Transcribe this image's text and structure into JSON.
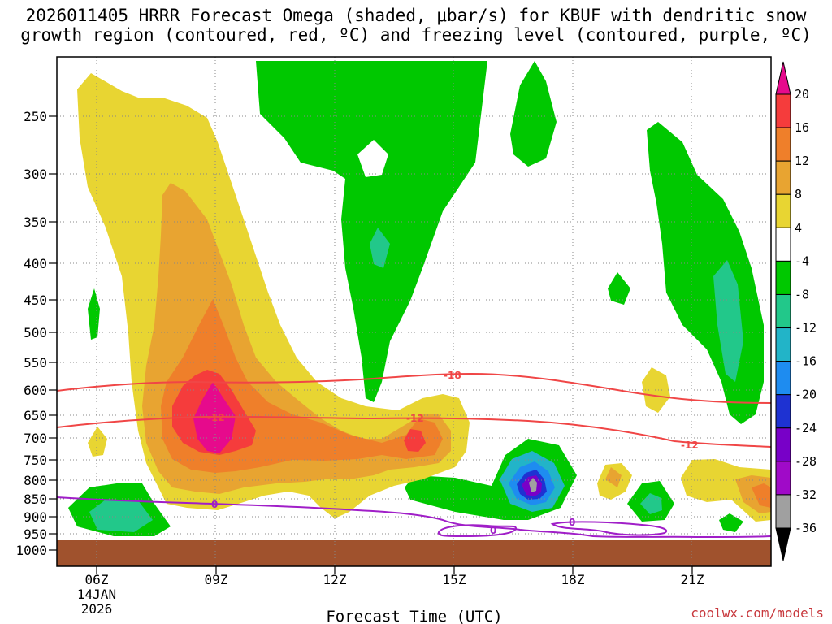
{
  "chart_data": {
    "type": "time-height cross section",
    "title_line1": "2026011405 HRRR Forecast Omega (shaded, μbar/s) for KBUF with dendritic snow",
    "title_line2": "growth region (contoured, red, ºC) and freezing level (contoured, purple, ºC)",
    "xlabel": "Forecast Time (UTC)",
    "credit": "coolwx.com/models",
    "x_ticks": [
      {
        "label": "06Z",
        "sub1": "14JAN",
        "sub2": "2026",
        "hour": 6
      },
      {
        "label": "09Z",
        "hour": 9
      },
      {
        "label": "12Z",
        "hour": 12
      },
      {
        "label": "15Z",
        "hour": 15
      },
      {
        "label": "18Z",
        "hour": 18
      },
      {
        "label": "21Z",
        "hour": 21
      }
    ],
    "x_range_hours": [
      5,
      23
    ],
    "y_ticks": [
      250,
      300,
      350,
      400,
      450,
      500,
      550,
      600,
      650,
      700,
      750,
      800,
      850,
      900,
      950,
      1000
    ],
    "y_range_hpa": [
      200,
      1000
    ],
    "y_scale": "pressure (log-like, decreasing upward)",
    "ground_color": "#a0522d",
    "grid": true,
    "colorbar": {
      "labels": [
        "20",
        "16",
        "12",
        "8",
        "4",
        "-4",
        "-8",
        "-12",
        "-16",
        "-20",
        "-24",
        "-28",
        "-32",
        "-36"
      ],
      "colors": [
        "#e60a8c",
        "#f53c3c",
        "#ef7f2a",
        "#e8a431",
        "#e8d532",
        "#ffffff",
        "#00c800",
        "#22c88a",
        "#22b4c8",
        "#1e8cf0",
        "#1e32d2",
        "#7800c8",
        "#a00ac8",
        "#a0a0a0",
        "#000000"
      ]
    },
    "contours": {
      "dgz_red": {
        "labels": [
          "-18",
          "-12"
        ],
        "color": "#f04646"
      },
      "freezing_purple": {
        "labels": [
          "0"
        ],
        "color": "#a01ec8"
      }
    }
  }
}
